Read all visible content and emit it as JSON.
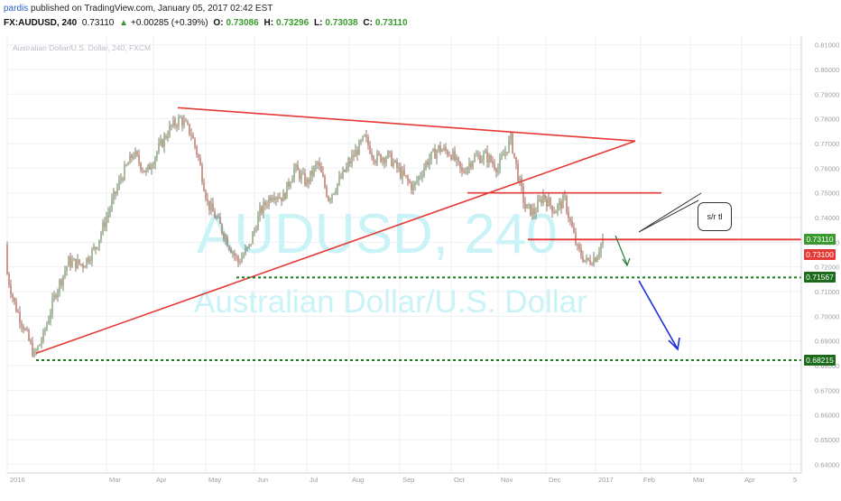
{
  "header": {
    "user": "pardis",
    "published": " published on TradingView.com, January 05, 2017 02:42 EST",
    "symbol": "FX:AUDUSD, 240",
    "last": "0.73110",
    "change_arrow": "▲",
    "change": "+0.00285 (+0.39%)",
    "open_label": "O:",
    "open": "0.73086",
    "high_label": "H:",
    "high": "0.73296",
    "low_label": "L:",
    "low": "0.73038",
    "close_label": "C:",
    "close": "0.73110"
  },
  "chart_data": {
    "type": "candlestick",
    "title": "Australian Dollar/U.S. Dollar, 240, FXCM",
    "watermark_symbol": "AUDUSD, 240",
    "watermark_name": "Australian Dollar/U.S. Dollar",
    "ylim": [
      0.6365,
      0.8135
    ],
    "y_ticks": [
      "0.81000",
      "0.80000",
      "0.79000",
      "0.78000",
      "0.77000",
      "0.76000",
      "0.75000",
      "0.74000",
      "0.73000",
      "0.72000",
      "0.71000",
      "0.70000",
      "0.69000",
      "0.68000",
      "0.67000",
      "0.66000",
      "0.65000",
      "0.64000"
    ],
    "x_ticks": [
      "2016",
      "Mar",
      "Apr",
      "May",
      "Jun",
      "Jul",
      "Aug",
      "Sep",
      "Oct",
      "Nov",
      "Dec",
      "2017",
      "Feb",
      "Mar",
      "Apr",
      "5"
    ],
    "price_path": [
      [
        0,
        0.729
      ],
      [
        6,
        0.72
      ],
      [
        16,
        0.705
      ],
      [
        26,
        0.696
      ],
      [
        38,
        0.684
      ],
      [
        48,
        0.692
      ],
      [
        62,
        0.71
      ],
      [
        76,
        0.722
      ],
      [
        92,
        0.721
      ],
      [
        106,
        0.728
      ],
      [
        120,
        0.742
      ],
      [
        134,
        0.756
      ],
      [
        148,
        0.766
      ],
      [
        162,
        0.758
      ],
      [
        176,
        0.768
      ],
      [
        188,
        0.776
      ],
      [
        200,
        0.78
      ],
      [
        212,
        0.774
      ],
      [
        220,
        0.764
      ],
      [
        230,
        0.746
      ],
      [
        242,
        0.738
      ],
      [
        254,
        0.729
      ],
      [
        264,
        0.722
      ],
      [
        276,
        0.728
      ],
      [
        288,
        0.742
      ],
      [
        302,
        0.75
      ],
      [
        314,
        0.748
      ],
      [
        326,
        0.76
      ],
      [
        340,
        0.754
      ],
      [
        352,
        0.762
      ],
      [
        364,
        0.748
      ],
      [
        378,
        0.756
      ],
      [
        390,
        0.764
      ],
      [
        404,
        0.772
      ],
      [
        416,
        0.764
      ],
      [
        430,
        0.765
      ],
      [
        444,
        0.758
      ],
      [
        458,
        0.752
      ],
      [
        472,
        0.762
      ],
      [
        486,
        0.768
      ],
      [
        500,
        0.766
      ],
      [
        512,
        0.758
      ],
      [
        524,
        0.764
      ],
      [
        538,
        0.765
      ],
      [
        552,
        0.76
      ],
      [
        566,
        0.772
      ],
      [
        574,
        0.757
      ],
      [
        582,
        0.744
      ],
      [
        592,
        0.742
      ],
      [
        602,
        0.749
      ],
      [
        614,
        0.743
      ],
      [
        626,
        0.747
      ],
      [
        632,
        0.738
      ],
      [
        640,
        0.727
      ],
      [
        650,
        0.722
      ],
      [
        660,
        0.724
      ],
      [
        668,
        0.7311
      ]
    ],
    "annotations": {
      "triangle_top_line": [
        [
          197,
          0.7845
        ],
        [
          704,
          0.771
        ]
      ],
      "rising_trendline": [
        [
          40,
          0.685
        ],
        [
          704,
          0.771
        ]
      ],
      "resistance_line": [
        [
          518,
          0.75
        ],
        [
          733,
          0.75
        ]
      ],
      "sr_line": [
        [
          585,
          0.7311
        ],
        [
          888,
          0.7311
        ]
      ],
      "support_dotted_1": [
        [
          262,
          0.7157
        ],
        [
          888,
          0.7157
        ]
      ],
      "support_dotted_2": [
        [
          40,
          0.6822
        ],
        [
          888,
          0.6822
        ]
      ]
    },
    "label_callout": "s/r tl",
    "price_labels": [
      {
        "value": "0.73110",
        "color": "#3a9a2e"
      },
      {
        "value": "0.73100",
        "color": "#e53935"
      },
      {
        "value": "0.71567",
        "color": "#1b6b1b"
      },
      {
        "value": "0.68215",
        "color": "#1b6b1b"
      }
    ]
  }
}
